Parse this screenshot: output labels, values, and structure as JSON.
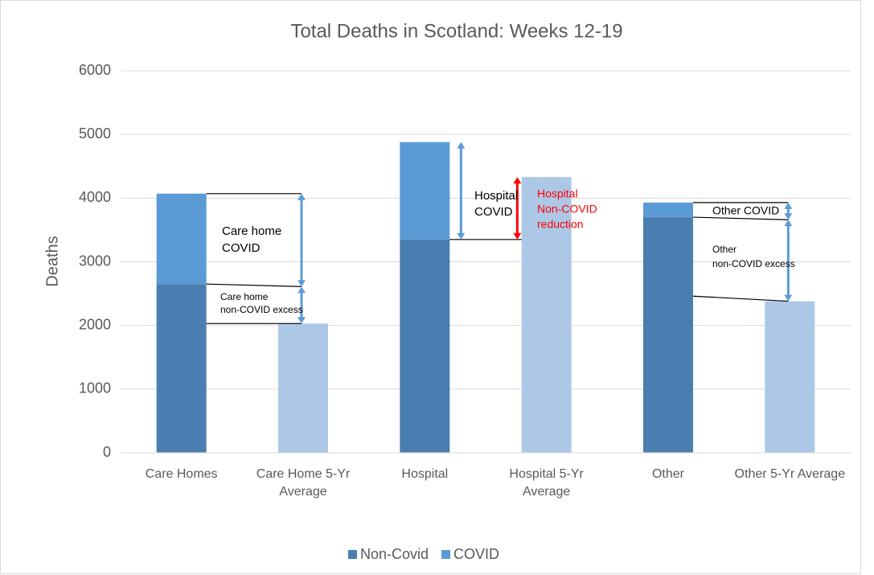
{
  "chart_data": {
    "type": "stacked-bar",
    "title": "Total Deaths in Scotland: Weeks 12-19",
    "y_label": "Deaths",
    "categories": [
      "Care Homes",
      "Care Home 5-Yr Average",
      "Hospital",
      "Hospital 5-Yr Average",
      "Other",
      "Other 5-Yr Average"
    ],
    "series": [
      {
        "name": "Non-Covid",
        "color": "#4a7eb0",
        "values": [
          2650,
          2030,
          3350,
          4330,
          3700,
          2380
        ],
        "point_colors": [
          "#4a7eb0",
          "#adc8e6",
          "#4a7eb0",
          "#adc8e6",
          "#4a7eb0",
          "#adc8e6"
        ]
      },
      {
        "name": "COVID",
        "color": "#5b9bd5",
        "values": [
          1420,
          null,
          1530,
          null,
          230,
          null
        ]
      }
    ],
    "ylim": [
      0,
      6000
    ],
    "yticks": [
      0,
      1000,
      2000,
      3000,
      4000,
      5000,
      6000
    ],
    "grid": true,
    "legend": "bottom",
    "annotations": [
      {
        "lines": [
          "Care home",
          "COVID"
        ],
        "color": "#000000"
      },
      {
        "lines": [
          "Care home",
          "non-COVID excess"
        ],
        "color": "#000000"
      },
      {
        "lines": [
          "Hospital",
          "COVID"
        ],
        "color": "#000000"
      },
      {
        "lines": [
          "Hospital",
          "Non-COVID",
          "reduction"
        ],
        "color": "#ff0000"
      },
      {
        "lines": [
          "Other COVID"
        ],
        "color": "#000000"
      },
      {
        "lines": [
          "Other",
          "non-COVID excess"
        ],
        "color": "#000000"
      }
    ]
  }
}
